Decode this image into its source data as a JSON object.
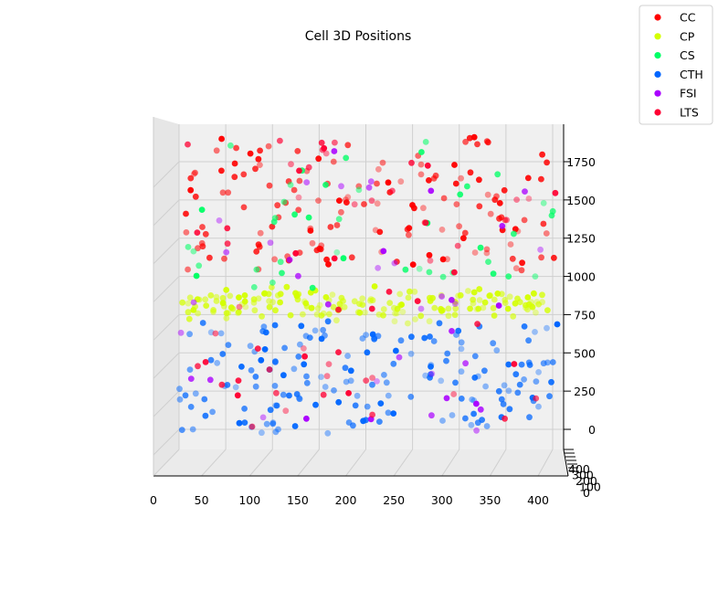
{
  "chart_data": {
    "type": "scatter",
    "title": "Cell 3D Positions",
    "xlabel": "",
    "ylabel": "",
    "zlabel": "",
    "x_ticks": [
      "0",
      "50",
      "100",
      "150",
      "200",
      "250",
      "300",
      "350",
      "400"
    ],
    "z_ticks": [
      "0",
      "250",
      "500",
      "750",
      "1000",
      "1250",
      "1500",
      "1750"
    ],
    "y_ticks_compressed": [
      "0",
      "100",
      "200",
      "300",
      "400"
    ],
    "xlim": [
      0,
      400
    ],
    "zlim": [
      0,
      2000
    ],
    "grid": true,
    "legend_position": "top-right",
    "series": [
      {
        "name": "CC",
        "color": "#ff0000",
        "z_range": [
          1050,
          1900
        ],
        "count": 150
      },
      {
        "name": "CP",
        "color": "#d4ff00",
        "z_range": [
          700,
          950
        ],
        "count": 170
      },
      {
        "name": "CS",
        "color": "#00ff66",
        "z_range": [
          900,
          1900
        ],
        "count": 45
      },
      {
        "name": "CTH",
        "color": "#0066ff",
        "z_range": [
          0,
          700
        ],
        "count": 180
      },
      {
        "name": "FSI",
        "color": "#aa00ff",
        "z_range": [
          0,
          1900
        ],
        "count": 40
      },
      {
        "name": "LTS",
        "color": "#ff0033",
        "z_range": [
          0,
          1900
        ],
        "count": 60
      }
    ]
  }
}
